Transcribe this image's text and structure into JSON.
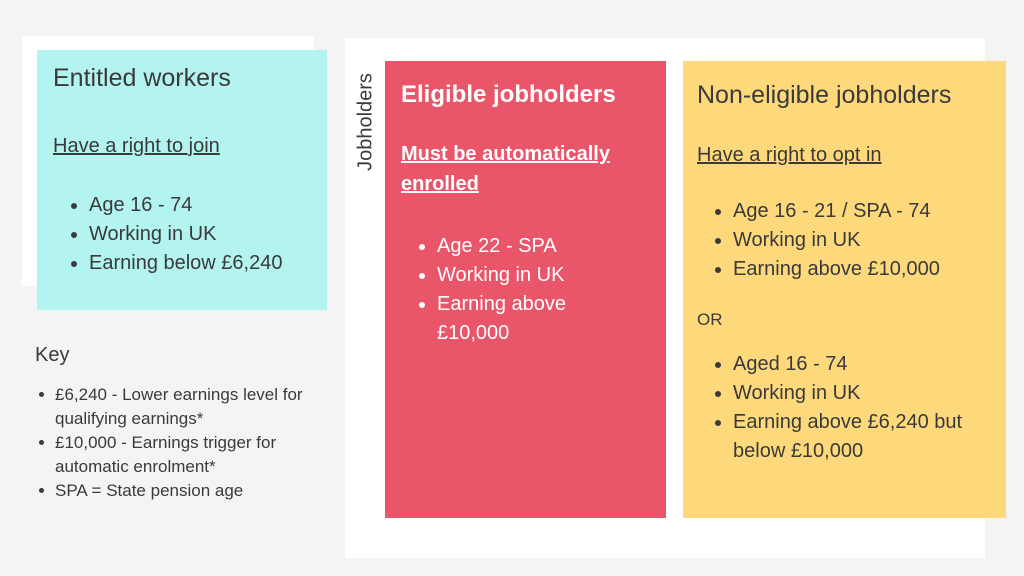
{
  "entitled": {
    "title": "Entitled workers",
    "subtitle": "Have a right to join",
    "items": [
      "Age 16 - 74",
      "Working in UK",
      "Earning below £6,240"
    ]
  },
  "jobholders_label": "Jobholders",
  "eligible": {
    "title": "Eligible jobholders",
    "subtitle": "Must be automatically enrolled",
    "items": [
      "Age 22 - SPA",
      "Working in UK",
      "Earning above £10,000"
    ]
  },
  "noneligible": {
    "title": "Non-eligible jobholders",
    "subtitle": "Have a right to opt in",
    "items_a": [
      "Age 16 - 21 / SPA - 74",
      "Working in UK",
      "Earning above £10,000"
    ],
    "or_label": "OR",
    "items_b": [
      "Aged 16 - 74",
      "Working in UK",
      "Earning above £6,240 but below £10,000"
    ]
  },
  "key": {
    "title": "Key",
    "items": [
      "£6,240 - Lower earnings level for qualifying earnings*",
      "£10,000 - Earnings trigger for automatic enrolment*",
      "SPA = State pension age"
    ]
  },
  "colors": {
    "entitled": "#b3f3f0",
    "eligible": "#e9566a",
    "noneligible": "#fed97c"
  }
}
